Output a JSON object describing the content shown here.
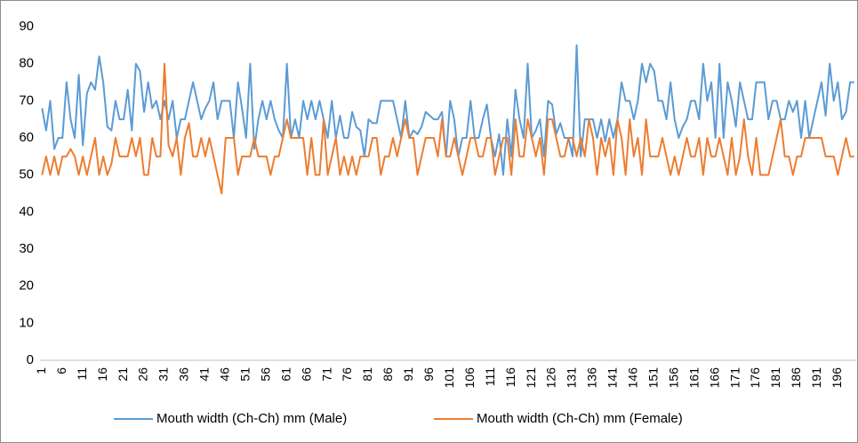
{
  "chart_data": {
    "type": "line",
    "categories": [
      1,
      null,
      null,
      null,
      null,
      6,
      null,
      null,
      null,
      null,
      11,
      null,
      null,
      null,
      null,
      16,
      null,
      null,
      null,
      null,
      21,
      null,
      null,
      null,
      null,
      26,
      null,
      null,
      null,
      null,
      31,
      null,
      null,
      null,
      null,
      36,
      null,
      null,
      null,
      null,
      41,
      null,
      null,
      null,
      null,
      46,
      null,
      null,
      null,
      null,
      51,
      null,
      null,
      null,
      null,
      56,
      null,
      null,
      null,
      null,
      61,
      null,
      null,
      null,
      null,
      66,
      null,
      null,
      null,
      null,
      71,
      null,
      null,
      null,
      null,
      76,
      null,
      null,
      null,
      null,
      81,
      null,
      null,
      null,
      null,
      86,
      null,
      null,
      null,
      null,
      91,
      null,
      null,
      null,
      null,
      96,
      null,
      null,
      null,
      null,
      101,
      null,
      null,
      null,
      null,
      106,
      null,
      null,
      null,
      null,
      111,
      null,
      null,
      null,
      null,
      116,
      null,
      null,
      null,
      null,
      121,
      null,
      null,
      null,
      null,
      126,
      null,
      null,
      null,
      null,
      131,
      null,
      null,
      null,
      null,
      136,
      null,
      null,
      null,
      null,
      141,
      null,
      null,
      null,
      null,
      146,
      null,
      null,
      null,
      null,
      151,
      null,
      null,
      null,
      null,
      156,
      null,
      null,
      null,
      null,
      161,
      null,
      null,
      null,
      null,
      166,
      null,
      null,
      null,
      null,
      171,
      null,
      null,
      null,
      null,
      176,
      null,
      null,
      null,
      null,
      181,
      null,
      null,
      null,
      null,
      186,
      null,
      null,
      null,
      null,
      191,
      null,
      null,
      null,
      null,
      196,
      null,
      null,
      null,
      null
    ],
    "series": [
      {
        "name": "Mouth width (Ch-Ch) mm (Male)",
        "color": "#5b9bd5",
        "values": [
          68,
          62,
          70,
          57,
          60,
          60,
          75,
          65,
          60,
          77,
          58,
          72,
          75,
          73,
          82,
          75,
          63,
          62,
          70,
          65,
          65,
          73,
          62,
          80,
          78,
          67,
          75,
          68,
          70,
          65,
          70,
          65,
          70,
          60,
          65,
          65,
          70,
          75,
          70,
          65,
          68,
          70,
          75,
          65,
          70,
          70,
          70,
          60,
          75,
          68,
          60,
          80,
          57,
          65,
          70,
          65,
          70,
          65,
          62,
          60,
          80,
          60,
          65,
          60,
          70,
          65,
          70,
          65,
          70,
          65,
          60,
          70,
          60,
          66,
          60,
          60,
          67,
          63,
          62,
          55,
          65,
          64,
          64,
          70,
          70,
          70,
          70,
          65,
          60,
          70,
          60,
          62,
          61,
          63,
          67,
          66,
          65,
          65,
          67,
          55,
          70,
          65,
          55,
          60,
          60,
          70,
          60,
          60,
          65,
          69,
          60,
          55,
          61,
          50,
          65,
          55,
          73,
          65,
          60,
          80,
          60,
          62,
          65,
          55,
          70,
          69,
          61,
          64,
          60,
          60,
          55,
          85,
          55,
          65,
          65,
          65,
          60,
          65,
          59,
          65,
          60,
          65,
          75,
          70,
          70,
          65,
          70,
          80,
          75,
          80,
          78,
          70,
          70,
          65,
          75,
          65,
          60,
          63,
          65,
          70,
          70,
          65,
          80,
          70,
          75,
          60,
          80,
          60,
          75,
          70,
          63,
          75,
          70,
          65,
          65,
          75,
          75,
          75,
          65,
          70,
          70,
          65,
          65,
          70,
          67,
          70,
          60,
          70,
          60,
          65,
          70,
          75,
          66,
          80,
          70,
          75,
          65,
          67,
          75,
          75
        ]
      },
      {
        "name": "Mouth width (Ch-Ch) mm (Female)",
        "color": "#ed7d31",
        "values": [
          50,
          55,
          50,
          55,
          50,
          55,
          55,
          57,
          55,
          50,
          55,
          50,
          55,
          60,
          50,
          55,
          50,
          53,
          60,
          55,
          55,
          55,
          60,
          55,
          60,
          50,
          50,
          60,
          55,
          55,
          80,
          58,
          55,
          60,
          50,
          60,
          64,
          55,
          55,
          60,
          55,
          60,
          55,
          50,
          45,
          60,
          60,
          60,
          50,
          55,
          55,
          55,
          60,
          55,
          55,
          55,
          50,
          55,
          55,
          60,
          65,
          60,
          60,
          60,
          60,
          50,
          60,
          50,
          50,
          65,
          50,
          55,
          60,
          50,
          55,
          50,
          55,
          50,
          55,
          55,
          55,
          60,
          60,
          50,
          55,
          55,
          60,
          55,
          60,
          65,
          60,
          60,
          50,
          55,
          60,
          60,
          60,
          55,
          65,
          55,
          55,
          60,
          55,
          50,
          55,
          60,
          60,
          55,
          55,
          60,
          60,
          50,
          55,
          60,
          60,
          50,
          65,
          55,
          55,
          65,
          60,
          55,
          60,
          50,
          65,
          65,
          60,
          55,
          55,
          60,
          60,
          55,
          60,
          55,
          65,
          60,
          50,
          60,
          55,
          60,
          50,
          65,
          60,
          50,
          65,
          55,
          60,
          50,
          65,
          55,
          55,
          55,
          60,
          55,
          50,
          55,
          50,
          55,
          60,
          55,
          55,
          60,
          50,
          60,
          55,
          55,
          60,
          55,
          50,
          60,
          50,
          55,
          65,
          55,
          50,
          60,
          50,
          50,
          50,
          55,
          60,
          65,
          55,
          55,
          50,
          55,
          55,
          60,
          60,
          60,
          60,
          60,
          55,
          55,
          55,
          50,
          55,
          60,
          55,
          55
        ]
      }
    ],
    "ylim": [
      0,
      90
    ],
    "yticks": [
      0,
      10,
      20,
      30,
      40,
      50,
      60,
      70,
      80,
      90
    ],
    "grid": false,
    "legend": "bottom"
  }
}
